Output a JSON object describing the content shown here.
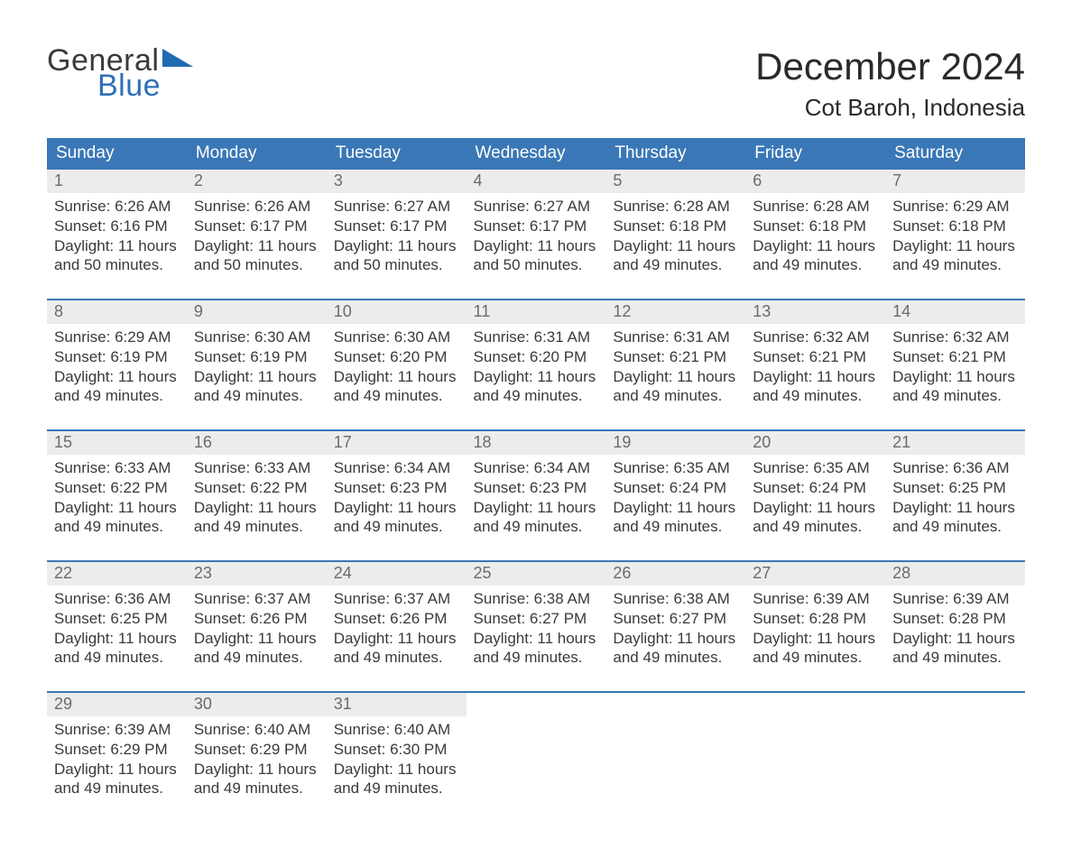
{
  "logo": {
    "word1": "General",
    "word2": "Blue",
    "tri_color": "#1f6bb1",
    "text_gray": "#3a3a3a",
    "text_blue": "#2f71b6"
  },
  "title": {
    "month": "December 2024",
    "location": "Cot Baroh, Indonesia"
  },
  "colors": {
    "header_bg": "#3a77b6",
    "header_fg": "#ffffff",
    "row_sep": "#3a77b6",
    "daynum_bg": "#ececec",
    "daynum_fg": "#6b6b6b",
    "body_text": "#3a3a3a",
    "page_bg": "#ffffff"
  },
  "weekdays": [
    "Sunday",
    "Monday",
    "Tuesday",
    "Wednesday",
    "Thursday",
    "Friday",
    "Saturday"
  ],
  "weeks": [
    [
      {
        "n": "1",
        "sr": "6:26 AM",
        "ss": "6:16 PM",
        "dl": "11 hours and 50 minutes."
      },
      {
        "n": "2",
        "sr": "6:26 AM",
        "ss": "6:17 PM",
        "dl": "11 hours and 50 minutes."
      },
      {
        "n": "3",
        "sr": "6:27 AM",
        "ss": "6:17 PM",
        "dl": "11 hours and 50 minutes."
      },
      {
        "n": "4",
        "sr": "6:27 AM",
        "ss": "6:17 PM",
        "dl": "11 hours and 50 minutes."
      },
      {
        "n": "5",
        "sr": "6:28 AM",
        "ss": "6:18 PM",
        "dl": "11 hours and 49 minutes."
      },
      {
        "n": "6",
        "sr": "6:28 AM",
        "ss": "6:18 PM",
        "dl": "11 hours and 49 minutes."
      },
      {
        "n": "7",
        "sr": "6:29 AM",
        "ss": "6:18 PM",
        "dl": "11 hours and 49 minutes."
      }
    ],
    [
      {
        "n": "8",
        "sr": "6:29 AM",
        "ss": "6:19 PM",
        "dl": "11 hours and 49 minutes."
      },
      {
        "n": "9",
        "sr": "6:30 AM",
        "ss": "6:19 PM",
        "dl": "11 hours and 49 minutes."
      },
      {
        "n": "10",
        "sr": "6:30 AM",
        "ss": "6:20 PM",
        "dl": "11 hours and 49 minutes."
      },
      {
        "n": "11",
        "sr": "6:31 AM",
        "ss": "6:20 PM",
        "dl": "11 hours and 49 minutes."
      },
      {
        "n": "12",
        "sr": "6:31 AM",
        "ss": "6:21 PM",
        "dl": "11 hours and 49 minutes."
      },
      {
        "n": "13",
        "sr": "6:32 AM",
        "ss": "6:21 PM",
        "dl": "11 hours and 49 minutes."
      },
      {
        "n": "14",
        "sr": "6:32 AM",
        "ss": "6:21 PM",
        "dl": "11 hours and 49 minutes."
      }
    ],
    [
      {
        "n": "15",
        "sr": "6:33 AM",
        "ss": "6:22 PM",
        "dl": "11 hours and 49 minutes."
      },
      {
        "n": "16",
        "sr": "6:33 AM",
        "ss": "6:22 PM",
        "dl": "11 hours and 49 minutes."
      },
      {
        "n": "17",
        "sr": "6:34 AM",
        "ss": "6:23 PM",
        "dl": "11 hours and 49 minutes."
      },
      {
        "n": "18",
        "sr": "6:34 AM",
        "ss": "6:23 PM",
        "dl": "11 hours and 49 minutes."
      },
      {
        "n": "19",
        "sr": "6:35 AM",
        "ss": "6:24 PM",
        "dl": "11 hours and 49 minutes."
      },
      {
        "n": "20",
        "sr": "6:35 AM",
        "ss": "6:24 PM",
        "dl": "11 hours and 49 minutes."
      },
      {
        "n": "21",
        "sr": "6:36 AM",
        "ss": "6:25 PM",
        "dl": "11 hours and 49 minutes."
      }
    ],
    [
      {
        "n": "22",
        "sr": "6:36 AM",
        "ss": "6:25 PM",
        "dl": "11 hours and 49 minutes."
      },
      {
        "n": "23",
        "sr": "6:37 AM",
        "ss": "6:26 PM",
        "dl": "11 hours and 49 minutes."
      },
      {
        "n": "24",
        "sr": "6:37 AM",
        "ss": "6:26 PM",
        "dl": "11 hours and 49 minutes."
      },
      {
        "n": "25",
        "sr": "6:38 AM",
        "ss": "6:27 PM",
        "dl": "11 hours and 49 minutes."
      },
      {
        "n": "26",
        "sr": "6:38 AM",
        "ss": "6:27 PM",
        "dl": "11 hours and 49 minutes."
      },
      {
        "n": "27",
        "sr": "6:39 AM",
        "ss": "6:28 PM",
        "dl": "11 hours and 49 minutes."
      },
      {
        "n": "28",
        "sr": "6:39 AM",
        "ss": "6:28 PM",
        "dl": "11 hours and 49 minutes."
      }
    ],
    [
      {
        "n": "29",
        "sr": "6:39 AM",
        "ss": "6:29 PM",
        "dl": "11 hours and 49 minutes."
      },
      {
        "n": "30",
        "sr": "6:40 AM",
        "ss": "6:29 PM",
        "dl": "11 hours and 49 minutes."
      },
      {
        "n": "31",
        "sr": "6:40 AM",
        "ss": "6:30 PM",
        "dl": "11 hours and 49 minutes."
      },
      null,
      null,
      null,
      null
    ]
  ],
  "labels": {
    "sunrise": "Sunrise: ",
    "sunset": "Sunset: ",
    "daylight": "Daylight: "
  }
}
